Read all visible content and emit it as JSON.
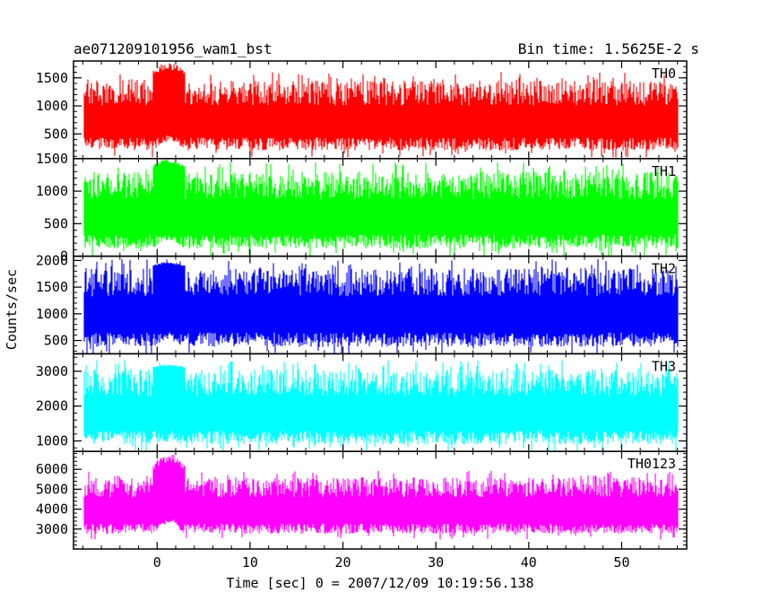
{
  "header": {
    "left": "ae071209101956_wam1_bst",
    "right": "Bin time: 1.5625E-2 s"
  },
  "chart_data": {
    "type": "line",
    "xlabel": "Time [sec] 0 = 2007/12/09 10:19:56.138",
    "ylabel": "Counts/sec",
    "xlim": [
      -9,
      57
    ],
    "xticks": [
      0,
      10,
      20,
      30,
      40,
      50
    ],
    "x_data_range": [
      -7.8,
      56
    ],
    "burst": {
      "start": -0.5,
      "end": 3.0
    },
    "grid": false,
    "panels": [
      {
        "name": "TH0",
        "color": "#ff0000",
        "ylim": [
          60,
          1800
        ],
        "yticks": [
          500,
          1000,
          1500
        ],
        "typical": [
          180,
          1450
        ],
        "burst_peak": 1780,
        "low_bump": 480
      },
      {
        "name": "TH1",
        "color": "#00ff00",
        "ylim": [
          0,
          1500
        ],
        "yticks": [
          0,
          500,
          1000,
          1500
        ],
        "typical": [
          90,
          1300
        ],
        "burst_peak": 1500,
        "low_bump": 350
      },
      {
        "name": "TH2",
        "color": "#0000ff",
        "ylim": [
          250,
          2080
        ],
        "yticks": [
          500,
          1000,
          1500,
          2000
        ],
        "typical": [
          350,
          1850
        ],
        "burst_peak": 1980,
        "low_bump": 600
      },
      {
        "name": "TH3",
        "color": "#00ffff",
        "ylim": [
          700,
          3500
        ],
        "yticks": [
          1000,
          2000,
          3000
        ],
        "typical": [
          850,
          3050
        ],
        "burst_peak": 3200,
        "low_bump": 1050
      },
      {
        "name": "TH0123",
        "color": "#ff00ff",
        "ylim": [
          2000,
          6900
        ],
        "yticks": [
          3000,
          4000,
          5000,
          6000
        ],
        "typical": [
          2700,
          5600
        ],
        "burst_peak": 6800,
        "low_bump": 3600
      }
    ]
  }
}
